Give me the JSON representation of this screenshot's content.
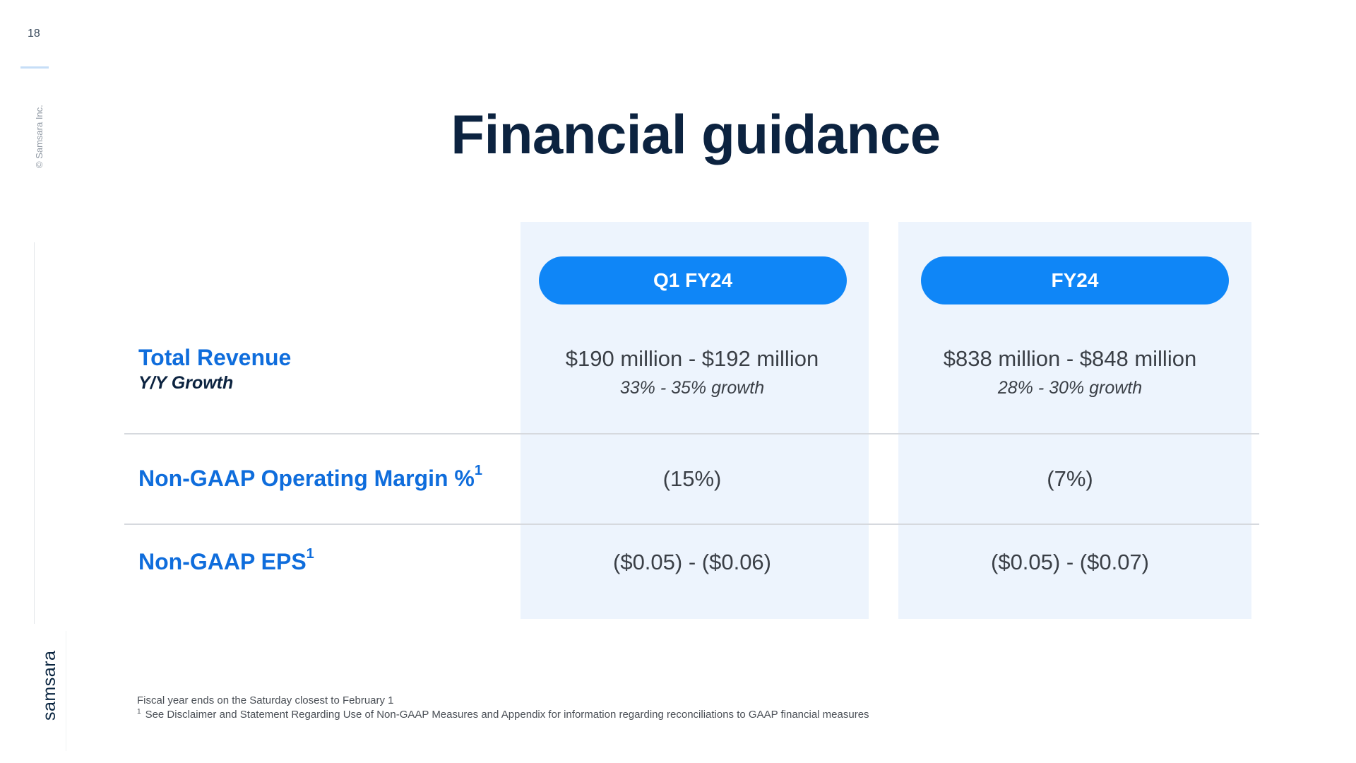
{
  "slide": {
    "page_number": "18",
    "copyright": "© Samsara Inc.",
    "brand": "samsara",
    "title": "Financial guidance"
  },
  "columns": [
    {
      "label": "Q1 FY24"
    },
    {
      "label": "FY24"
    }
  ],
  "rows": {
    "revenue": {
      "label": "Total Revenue",
      "sublabel": "Y/Y Growth",
      "q1": "$190 million - $192 million",
      "q1_sub": "33% - 35% growth",
      "fy": "$838 million - $848 million",
      "fy_sub": "28% - 30% growth"
    },
    "margin": {
      "label": "Non-GAAP Operating Margin %",
      "footnote_ref": "1",
      "q1": "(15%)",
      "fy": "(7%)"
    },
    "eps": {
      "label": "Non-GAAP EPS",
      "footnote_ref": "1",
      "q1": "($0.05) - ($0.06)",
      "fy": "($0.05) - ($0.07)"
    }
  },
  "footnotes": {
    "fiscal_year": "Fiscal year ends on the Saturday closest to February 1",
    "marker": "1",
    "disclaimer": "See Disclaimer and Statement Regarding Use of Non-GAAP Measures and Appendix for information regarding reconciliations to GAAP financial measures"
  },
  "colors": {
    "accent": "#0f86f7",
    "label_blue": "#0f6ddc",
    "title_navy": "#0c2340",
    "column_bg": "#edf4fd"
  }
}
